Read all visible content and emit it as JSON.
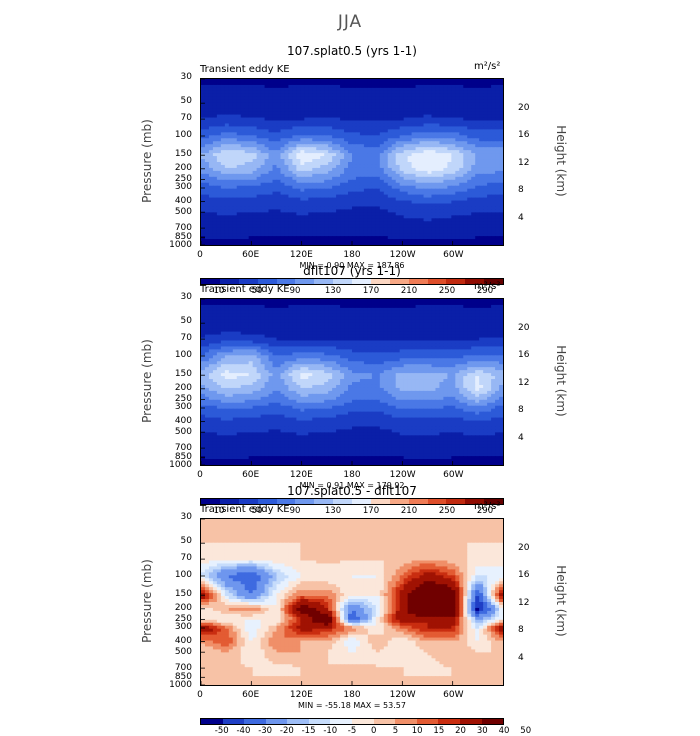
{
  "main_title": "JJA",
  "panels": [
    {
      "title": "107.splat0.5 (yrs 1-1)",
      "var_label": "Transient eddy KE",
      "units": "m²/s²",
      "minmax": "MIN =     0.90   MAX = 187.86",
      "colorbar_labels": [
        "10",
        "50",
        "90",
        "130",
        "170",
        "210",
        "250",
        "290"
      ]
    },
    {
      "title": "dflt107 (yrs 1-1)",
      "var_label": "Transient eddy KE",
      "units": "m²/s²",
      "minmax": "MIN =     0.91   MAX = 179.92",
      "colorbar_labels": [
        "10",
        "50",
        "90",
        "130",
        "170",
        "210",
        "250",
        "290"
      ]
    },
    {
      "title": "107.splat0.5 - dflt107",
      "var_label": "Transient eddy KE",
      "units": "m²/s²",
      "minmax": "MIN = -55.18   MAX =  53.57",
      "colorbar_labels": [
        "-50",
        "-40",
        "-30",
        "-20",
        "-15",
        "-10",
        "-5",
        "0",
        "5",
        "10",
        "15",
        "20",
        "30",
        "40",
        "50"
      ]
    }
  ],
  "axes": {
    "ylabel_left": "Pressure (mb)",
    "ylabel_right": "Height (km)",
    "pressure_ticks": [
      "30",
      "50",
      "70",
      "100",
      "150",
      "200",
      "250",
      "300",
      "400",
      "500",
      "700",
      "850",
      "1000"
    ],
    "height_ticks": [
      "20",
      "16",
      "12",
      "8",
      "4"
    ],
    "x_ticks": [
      "0",
      "60E",
      "120E",
      "180",
      "120W",
      "60W"
    ]
  },
  "colors": {
    "seq": [
      "#00008b",
      "#0a1fa8",
      "#1a3cc4",
      "#2c5ad8",
      "#4a78e6",
      "#6f98ee",
      "#97b7f4",
      "#c0d6fa",
      "#e4eefe",
      "#fbd6c2",
      "#f7a885",
      "#ef7b55",
      "#de4e2a",
      "#c02a10",
      "#900c02",
      "#640000"
    ],
    "div": [
      "#00008b",
      "#1f3fc6",
      "#3e6ae0",
      "#6e96ee",
      "#9dbdf6",
      "#c6dcfb",
      "#e7f1fe",
      "#fbe7da",
      "#f7c2a6",
      "#f08f68",
      "#e35b33",
      "#c92d10",
      "#a01203",
      "#700000"
    ]
  },
  "chart_data": [
    {
      "type": "heatmap",
      "title": "107.splat0.5 (yrs 1-1)",
      "subtitle": "Transient eddy KE",
      "xlabel": "",
      "ylabel": "Pressure (mb)",
      "ylabel_right": "Height (km)",
      "units": "m2/s2",
      "x_range_lon": [
        0,
        360
      ],
      "y_range_mb": [
        1000,
        30
      ],
      "y_scale": "log",
      "min": 0.9,
      "max": 187.86,
      "levels": [
        10,
        30,
        50,
        70,
        90,
        110,
        130,
        150,
        170,
        190,
        210,
        230,
        250,
        270,
        290
      ],
      "lon": [
        0,
        30,
        60,
        90,
        120,
        150,
        180,
        210,
        240,
        270,
        300,
        330,
        360
      ],
      "pressure": [
        30,
        50,
        70,
        100,
        150,
        200,
        250,
        300,
        400,
        500,
        700,
        850,
        1000
      ],
      "values": [
        [
          8,
          8,
          8,
          8,
          8,
          8,
          8,
          8,
          8,
          8,
          8,
          8,
          8
        ],
        [
          15,
          16,
          15,
          14,
          15,
          15,
          14,
          14,
          14,
          15,
          15,
          14,
          15
        ],
        [
          30,
          35,
          32,
          28,
          30,
          32,
          28,
          26,
          30,
          34,
          32,
          28,
          30
        ],
        [
          60,
          80,
          70,
          55,
          75,
          70,
          55,
          50,
          70,
          85,
          80,
          60,
          60
        ],
        [
          110,
          150,
          140,
          95,
          170,
          150,
          90,
          85,
          145,
          170,
          150,
          110,
          110
        ],
        [
          95,
          130,
          120,
          85,
          140,
          120,
          80,
          80,
          140,
          165,
          145,
          100,
          95
        ],
        [
          75,
          95,
          90,
          70,
          100,
          95,
          70,
          65,
          105,
          125,
          110,
          80,
          75
        ],
        [
          60,
          70,
          65,
          55,
          75,
          70,
          55,
          50,
          80,
          95,
          85,
          65,
          60
        ],
        [
          40,
          45,
          42,
          38,
          45,
          42,
          36,
          35,
          48,
          55,
          50,
          42,
          40
        ],
        [
          30,
          32,
          30,
          28,
          32,
          30,
          26,
          25,
          34,
          38,
          34,
          30,
          30
        ],
        [
          18,
          20,
          18,
          17,
          18,
          18,
          16,
          15,
          20,
          22,
          20,
          18,
          18
        ],
        [
          10,
          12,
          10,
          10,
          10,
          10,
          10,
          9,
          12,
          14,
          12,
          10,
          10
        ],
        [
          3,
          4,
          3,
          3,
          3,
          3,
          3,
          3,
          4,
          4,
          3,
          3,
          3
        ]
      ]
    },
    {
      "type": "heatmap",
      "title": "dflt107 (yrs 1-1)",
      "subtitle": "Transient eddy KE",
      "xlabel": "",
      "ylabel": "Pressure (mb)",
      "ylabel_right": "Height (km)",
      "units": "m2/s2",
      "x_range_lon": [
        0,
        360
      ],
      "y_range_mb": [
        1000,
        30
      ],
      "y_scale": "log",
      "min": 0.91,
      "max": 179.92,
      "levels": [
        10,
        30,
        50,
        70,
        90,
        110,
        130,
        150,
        170,
        190,
        210,
        230,
        250,
        270,
        290
      ],
      "lon": [
        0,
        30,
        60,
        90,
        120,
        150,
        180,
        210,
        240,
        270,
        300,
        330,
        360
      ],
      "pressure": [
        30,
        50,
        70,
        100,
        150,
        200,
        250,
        300,
        400,
        500,
        700,
        850,
        1000
      ],
      "values": [
        [
          8,
          8,
          8,
          8,
          8,
          8,
          8,
          8,
          8,
          8,
          8,
          8,
          8
        ],
        [
          15,
          16,
          15,
          14,
          15,
          15,
          14,
          14,
          14,
          15,
          15,
          14,
          15
        ],
        [
          32,
          40,
          38,
          30,
          30,
          30,
          28,
          26,
          28,
          28,
          30,
          30,
          32
        ],
        [
          70,
          110,
          120,
          70,
          80,
          75,
          60,
          55,
          60,
          60,
          65,
          70,
          70
        ],
        [
          120,
          160,
          150,
          100,
          160,
          140,
          95,
          90,
          120,
          120,
          110,
          150,
          120
        ],
        [
          100,
          130,
          120,
          90,
          130,
          120,
          85,
          85,
          115,
          115,
          100,
          160,
          100
        ],
        [
          80,
          100,
          95,
          75,
          100,
          95,
          72,
          70,
          95,
          95,
          85,
          120,
          80
        ],
        [
          62,
          72,
          68,
          58,
          75,
          70,
          56,
          54,
          72,
          72,
          66,
          85,
          62
        ],
        [
          40,
          46,
          42,
          38,
          46,
          42,
          36,
          35,
          44,
          44,
          40,
          50,
          40
        ],
        [
          30,
          32,
          30,
          28,
          32,
          30,
          26,
          25,
          32,
          32,
          30,
          34,
          30
        ],
        [
          18,
          20,
          18,
          17,
          18,
          18,
          16,
          15,
          18,
          22,
          18,
          18,
          18
        ],
        [
          10,
          12,
          10,
          10,
          10,
          10,
          10,
          9,
          10,
          14,
          10,
          10,
          10
        ],
        [
          3,
          4,
          3,
          3,
          3,
          3,
          3,
          3,
          3,
          4,
          3,
          3,
          3
        ]
      ]
    },
    {
      "type": "heatmap",
      "title": "107.splat0.5 - dflt107",
      "subtitle": "Transient eddy KE",
      "xlabel": "",
      "ylabel": "Pressure (mb)",
      "ylabel_right": "Height (km)",
      "units": "m2/s2",
      "x_range_lon": [
        0,
        360
      ],
      "y_range_mb": [
        1000,
        30
      ],
      "y_scale": "log",
      "min": -55.18,
      "max": 53.57,
      "levels": [
        -50,
        -40,
        -30,
        -20,
        -15,
        -10,
        -5,
        0,
        5,
        10,
        15,
        20,
        30,
        40,
        50
      ],
      "lon": [
        0,
        30,
        60,
        90,
        120,
        150,
        180,
        210,
        240,
        270,
        300,
        330,
        360
      ],
      "pressure": [
        30,
        50,
        70,
        100,
        150,
        200,
        250,
        300,
        400,
        500,
        700,
        850,
        1000
      ],
      "values": [
        [
          0,
          0,
          0,
          0,
          0,
          0,
          0,
          0,
          0,
          0,
          0,
          0,
          0
        ],
        [
          0,
          0,
          0,
          0,
          0,
          0,
          0,
          0,
          0,
          0,
          0,
          0,
          0
        ],
        [
          -2,
          -5,
          -4,
          -2,
          0,
          2,
          0,
          0,
          2,
          5,
          2,
          -2,
          -2
        ],
        [
          -10,
          -30,
          -40,
          -15,
          -5,
          -5,
          -5,
          -5,
          10,
          25,
          15,
          -10,
          -10
        ],
        [
          30,
          -10,
          -30,
          -5,
          10,
          10,
          -5,
          -5,
          25,
          50,
          40,
          -40,
          30
        ],
        [
          -5,
          5,
          10,
          -5,
          40,
          20,
          -30,
          -10,
          25,
          50,
          45,
          -55,
          -5
        ],
        [
          -5,
          -5,
          -5,
          -5,
          20,
          45,
          -40,
          -5,
          30,
          20,
          25,
          -20,
          -5
        ],
        [
          30,
          10,
          -10,
          5,
          25,
          20,
          10,
          -5,
          10,
          20,
          20,
          -10,
          30
        ],
        [
          5,
          15,
          -5,
          10,
          5,
          5,
          -10,
          5,
          -5,
          5,
          5,
          -5,
          5
        ],
        [
          0,
          5,
          -5,
          5,
          5,
          0,
          -5,
          0,
          -5,
          0,
          5,
          0,
          0
        ],
        [
          0,
          2,
          0,
          -2,
          0,
          0,
          2,
          0,
          0,
          -2,
          0,
          0,
          0
        ],
        [
          0,
          0,
          0,
          0,
          0,
          0,
          0,
          0,
          0,
          0,
          0,
          0,
          0
        ],
        [
          0,
          0,
          0,
          0,
          0,
          0,
          0,
          0,
          0,
          0,
          0,
          0,
          0
        ]
      ]
    }
  ]
}
